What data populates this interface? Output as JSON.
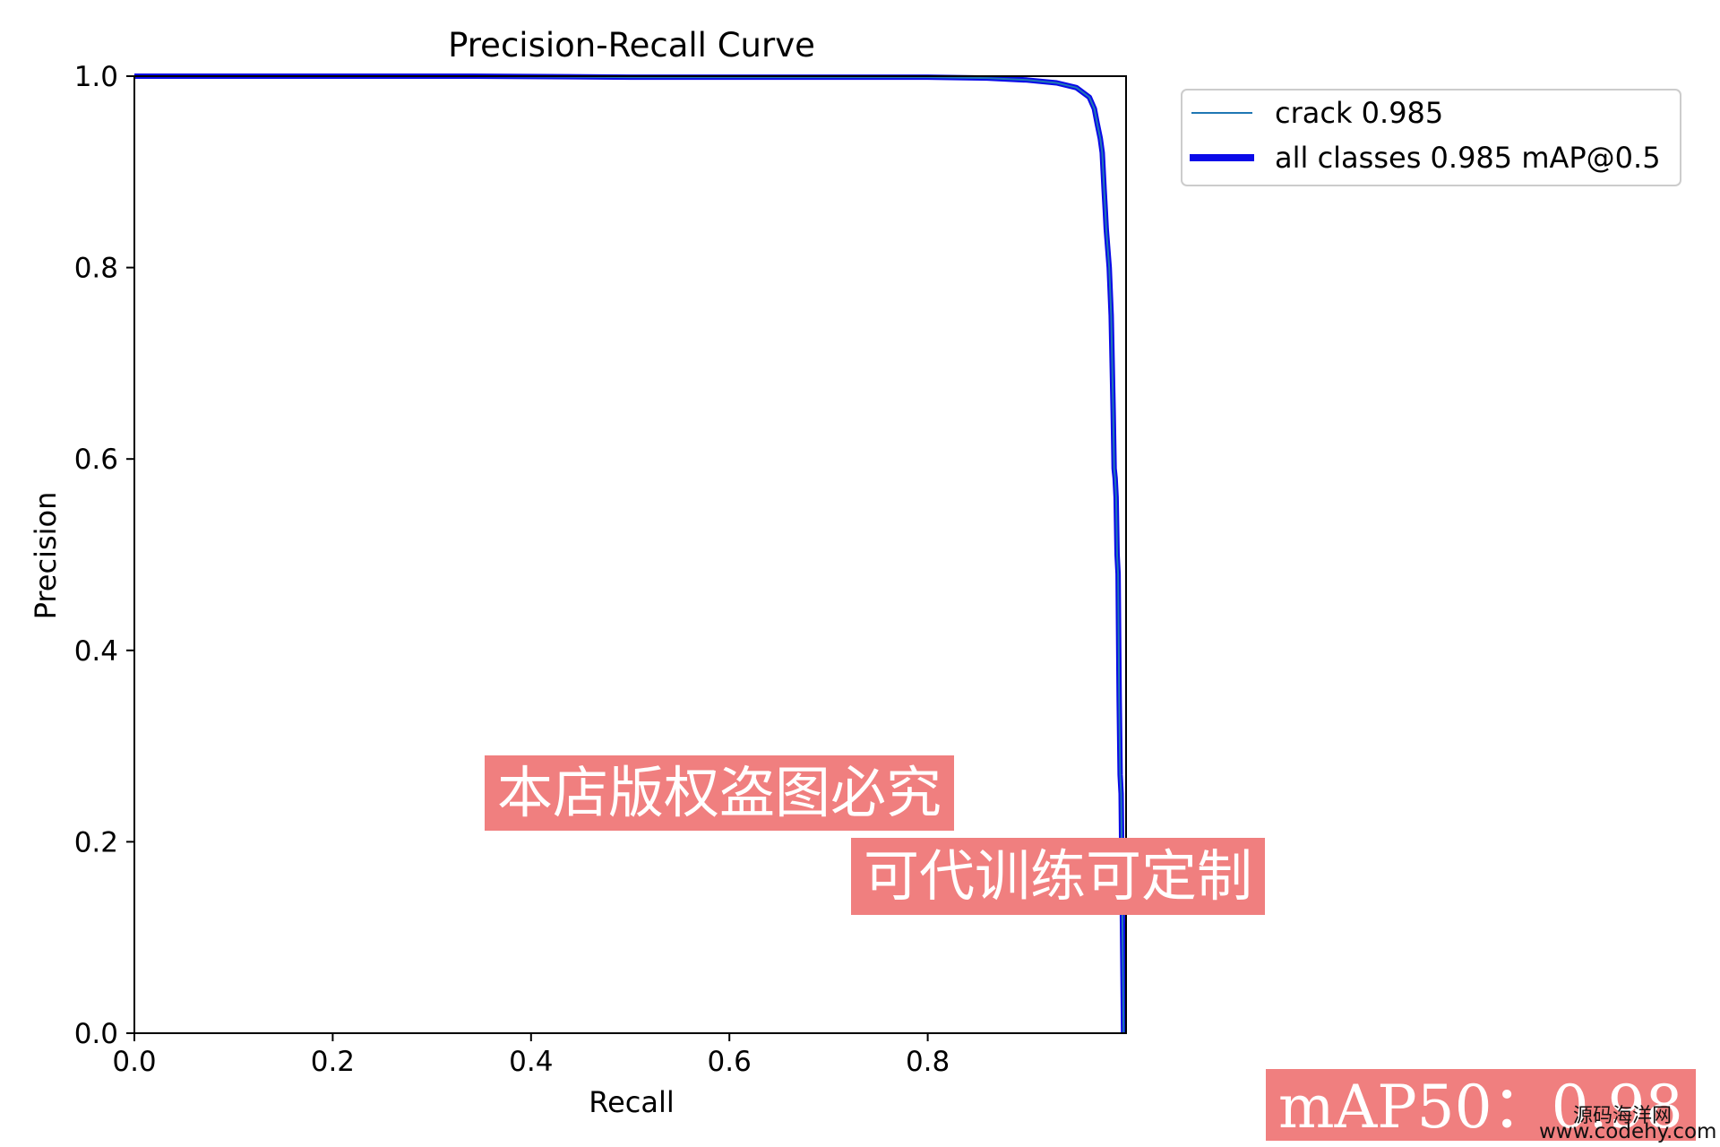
{
  "chart_data": {
    "type": "line",
    "title": "Precision-Recall Curve",
    "xlabel": "Recall",
    "ylabel": "Precision",
    "xlim": [
      0,
      1
    ],
    "ylim": [
      0,
      1
    ],
    "xticks": [
      0.0,
      0.2,
      0.4,
      0.6,
      0.8
    ],
    "xtick_labels": [
      "0.0",
      "0.2",
      "0.4",
      "0.6",
      "0.8"
    ],
    "yticks": [
      0.0,
      0.2,
      0.4,
      0.6,
      0.8,
      1.0
    ],
    "ytick_labels": [
      "0.0",
      "0.2",
      "0.4",
      "0.6",
      "0.8",
      "1.0"
    ],
    "grid": false,
    "legend": "top-right outside",
    "series": [
      {
        "name": "crack 0.985",
        "color": "#1f77b4",
        "x": [
          0.0,
          0.34,
          0.5,
          0.8,
          0.86,
          0.9,
          0.93,
          0.95,
          0.963,
          0.968,
          0.971,
          0.974,
          0.976,
          0.977,
          0.978,
          0.979,
          0.98,
          0.983,
          0.985,
          0.986,
          0.987,
          0.988,
          0.989,
          0.99,
          0.991,
          0.992,
          0.993,
          0.994,
          0.995,
          0.996,
          0.997,
          0.9975
        ],
        "y": [
          1.0,
          1.0,
          0.999,
          0.999,
          0.998,
          0.996,
          0.993,
          0.988,
          0.978,
          0.966,
          0.95,
          0.935,
          0.92,
          0.9,
          0.88,
          0.86,
          0.84,
          0.8,
          0.75,
          0.7,
          0.65,
          0.59,
          0.58,
          0.56,
          0.5,
          0.48,
          0.35,
          0.27,
          0.25,
          0.15,
          0.05,
          0.0
        ]
      },
      {
        "name": "all classes 0.985 mAP@0.5",
        "color": "#0a0ae8",
        "x": [
          0.0,
          0.34,
          0.5,
          0.8,
          0.86,
          0.9,
          0.93,
          0.95,
          0.963,
          0.968,
          0.971,
          0.974,
          0.976,
          0.977,
          0.978,
          0.979,
          0.98,
          0.983,
          0.985,
          0.986,
          0.987,
          0.988,
          0.989,
          0.99,
          0.991,
          0.992,
          0.993,
          0.994,
          0.995,
          0.996,
          0.997,
          0.9975
        ],
        "y": [
          1.0,
          1.0,
          0.999,
          0.999,
          0.998,
          0.996,
          0.993,
          0.988,
          0.978,
          0.966,
          0.95,
          0.935,
          0.92,
          0.9,
          0.88,
          0.86,
          0.84,
          0.8,
          0.75,
          0.7,
          0.65,
          0.59,
          0.58,
          0.56,
          0.5,
          0.48,
          0.35,
          0.27,
          0.25,
          0.15,
          0.05,
          0.0
        ]
      }
    ]
  },
  "watermarks": {
    "line1": "本店版权盗图必究",
    "line2": "可代训练可定制",
    "line3": "mAP50：0.98"
  },
  "site": {
    "name_cn": "源码海洋网",
    "url": "www.codehy.com"
  }
}
